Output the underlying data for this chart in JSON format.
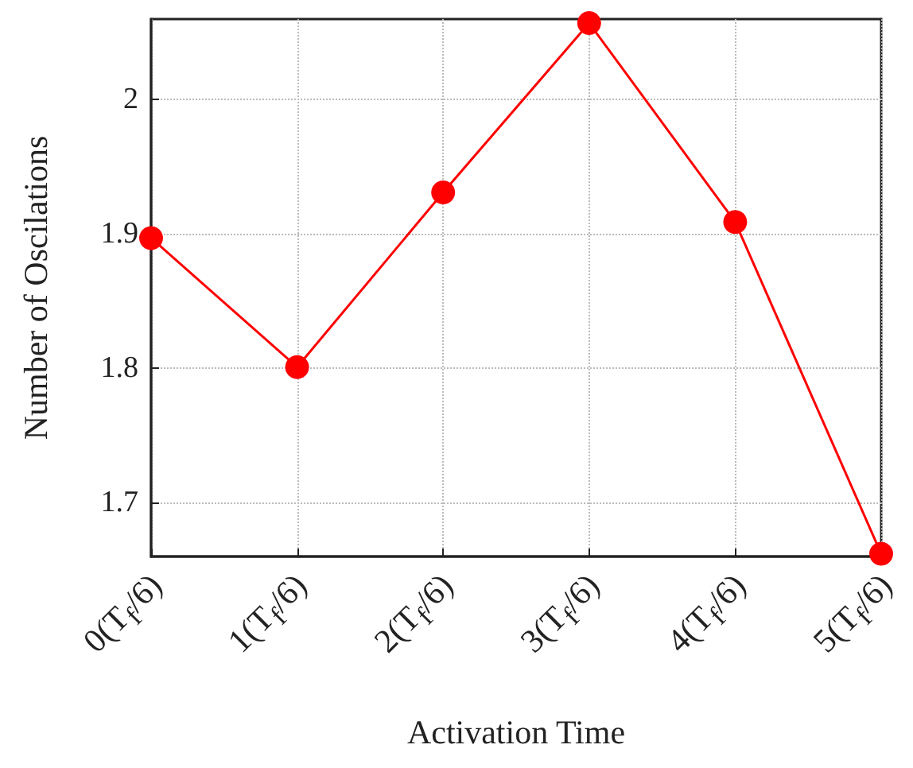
{
  "chart_data": {
    "type": "line",
    "xlabel": "Activation Time",
    "ylabel": "Number of Oscilations",
    "categories": [
      "0(T$_{f}$/6)",
      "1(T$_{f}$/6)",
      "2(T$_{f}$/6)",
      "3(T$_{f}$/6)",
      "4(T$_{f}$/6)",
      "5(T$_{f}$/6)"
    ],
    "series": [
      {
        "color": "#ff0000",
        "values": [
          1.897,
          1.801,
          1.931,
          2.057,
          1.909,
          1.662
        ]
      }
    ],
    "ylim": [
      1.66,
      2.06
    ],
    "yticks": [
      1.7,
      1.8,
      1.9,
      2
    ],
    "grid": true,
    "marker": "circle",
    "line_style": "solid"
  }
}
